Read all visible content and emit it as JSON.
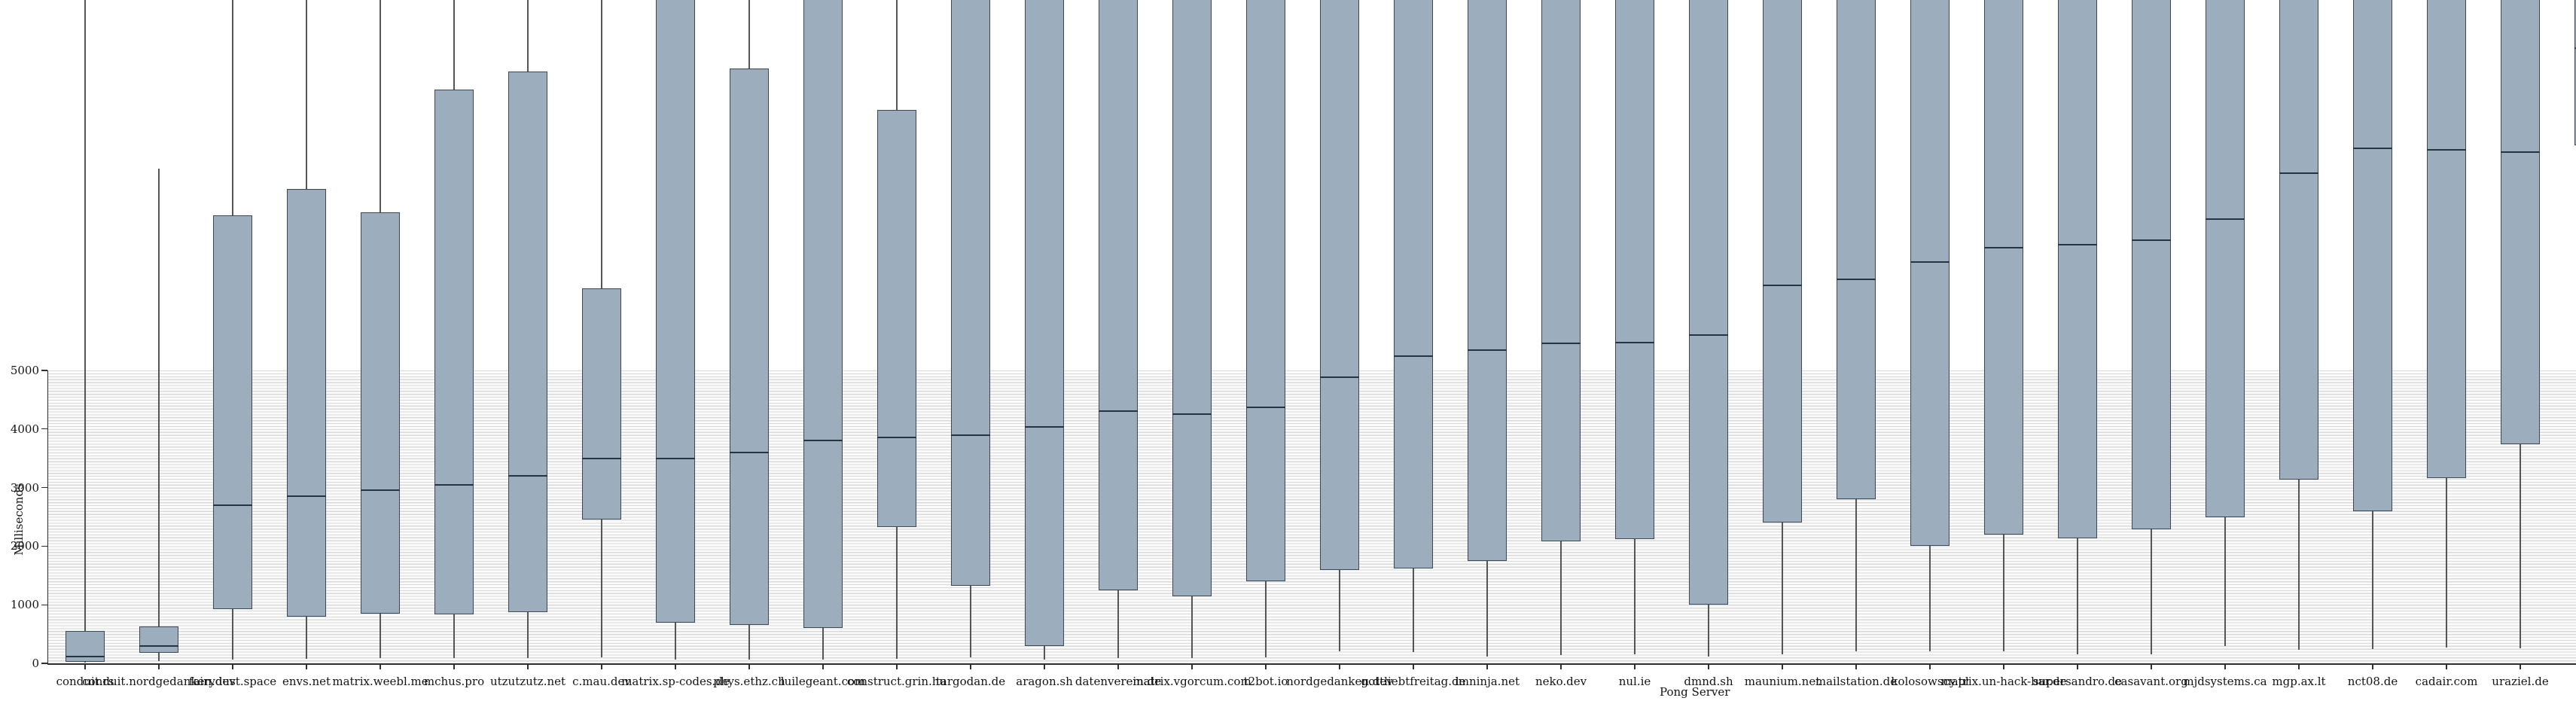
{
  "chart": {
    "background_color": "#ffffff",
    "y_axis_title": "Milliseconds",
    "x_axis_title": "Pong Server",
    "y_tick_labels": [
      "0",
      "1000",
      "2000",
      "3000",
      "4000",
      "5000"
    ]
  },
  "colors": {
    "box_fill": "#9cadbe",
    "box_border": "#3d4854",
    "median_line": "#253442",
    "whisker": "#555555",
    "axis": "#2e2e2e",
    "stripe_line": "#d9d9d9",
    "stripe_background": "#fbfbfb",
    "text": "#141414"
  },
  "chart_data": {
    "type": "boxplot",
    "title": "",
    "xlabel": "Pong Server",
    "ylabel": "Milliseconds",
    "ylim": [
      0,
      11320
    ],
    "y_tick_values": [
      0,
      1000,
      2000,
      3000,
      4000,
      5000
    ],
    "grid": "horizontal stripe lines every ~50 ms filling the band from 0 to 5000; white above 5000",
    "legend_position": "none",
    "clip_value": 11600,
    "clip_meaning": "11600 = feature extends past the top edge of the image (clipped); values are estimated ms",
    "series": [
      {
        "label": "conduit.rs",
        "min": 15,
        "q1": 30,
        "median": 120,
        "q3": 550,
        "max": 11600,
        "clipped_top": true
      },
      {
        "label": "conduit.nordgedanken.dev",
        "min": 40,
        "q1": 180,
        "median": 300,
        "q3": 630,
        "max": 8450,
        "clipped_top": false
      },
      {
        "label": "fairydust.space",
        "min": 70,
        "q1": 920,
        "median": 2700,
        "q3": 7650,
        "max": 11600,
        "clipped_top": true
      },
      {
        "label": "envs.net",
        "min": 80,
        "q1": 800,
        "median": 2850,
        "q3": 8100,
        "max": 11600,
        "clipped_top": true
      },
      {
        "label": "matrix.weebl.me",
        "min": 90,
        "q1": 850,
        "median": 2950,
        "q3": 7700,
        "max": 11600,
        "clipped_top": true
      },
      {
        "label": "mchus.pro",
        "min": 90,
        "q1": 830,
        "median": 3050,
        "q3": 9800,
        "max": 11600,
        "clipped_top": true
      },
      {
        "label": "utzutzutz.net",
        "min": 90,
        "q1": 870,
        "median": 3200,
        "q3": 10100,
        "max": 11600,
        "clipped_top": true
      },
      {
        "label": "c.mau.dev",
        "min": 100,
        "q1": 2450,
        "median": 3500,
        "q3": 6400,
        "max": 11600,
        "clipped_top": true
      },
      {
        "label": "matrix.sp-codes.de",
        "min": 60,
        "q1": 700,
        "median": 3500,
        "q3": 11600,
        "max": 11600,
        "clipped_top": true
      },
      {
        "label": "phys.ethz.ch",
        "min": 70,
        "q1": 650,
        "median": 3600,
        "q3": 10150,
        "max": 11600,
        "clipped_top": true
      },
      {
        "label": "luilegeant.com",
        "min": 60,
        "q1": 600,
        "median": 3800,
        "q3": 11600,
        "max": 11600,
        "clipped_top": true
      },
      {
        "label": "construct.grin.hu",
        "min": 80,
        "q1": 2330,
        "median": 3850,
        "q3": 9450,
        "max": 11600,
        "clipped_top": true
      },
      {
        "label": "targodan.de",
        "min": 100,
        "q1": 1330,
        "median": 3900,
        "q3": 11600,
        "max": 11600,
        "clipped_top": true
      },
      {
        "label": "aragon.sh",
        "min": 60,
        "q1": 300,
        "median": 4040,
        "q3": 11600,
        "max": 11600,
        "clipped_top": true
      },
      {
        "label": "datenverein.de",
        "min": 90,
        "q1": 1250,
        "median": 4300,
        "q3": 11600,
        "max": 11600,
        "clipped_top": true
      },
      {
        "label": "matrix.vgorcum.com",
        "min": 90,
        "q1": 1150,
        "median": 4260,
        "q3": 11600,
        "max": 11600,
        "clipped_top": true
      },
      {
        "label": "t2bot.io",
        "min": 100,
        "q1": 1400,
        "median": 4370,
        "q3": 11600,
        "max": 11600,
        "clipped_top": true
      },
      {
        "label": "nordgedanken.dev",
        "min": 200,
        "q1": 1600,
        "median": 4880,
        "q3": 11600,
        "max": 11600,
        "clipped_top": true
      },
      {
        "label": "gottliebtfreitag.de",
        "min": 190,
        "q1": 1620,
        "median": 5240,
        "q3": 11600,
        "max": 11600,
        "clipped_top": true
      },
      {
        "label": "imninja.net",
        "min": 120,
        "q1": 1750,
        "median": 5350,
        "q3": 11600,
        "max": 11600,
        "clipped_top": true
      },
      {
        "label": "neko.dev",
        "min": 140,
        "q1": 2080,
        "median": 5460,
        "q3": 11600,
        "max": 11600,
        "clipped_top": true
      },
      {
        "label": "nul.ie",
        "min": 150,
        "q1": 2120,
        "median": 5480,
        "q3": 11600,
        "max": 11600,
        "clipped_top": true
      },
      {
        "label": "dmnd.sh",
        "min": 110,
        "q1": 1000,
        "median": 5600,
        "q3": 11600,
        "max": 11600,
        "clipped_top": true
      },
      {
        "label": "maunium.net",
        "min": 150,
        "q1": 2400,
        "median": 6450,
        "q3": 11600,
        "max": 11600,
        "clipped_top": true
      },
      {
        "label": "mailstation.de",
        "min": 200,
        "q1": 2800,
        "median": 6550,
        "q3": 11600,
        "max": 11600,
        "clipped_top": true
      },
      {
        "label": "kolosowscy.pl",
        "min": 200,
        "q1": 2000,
        "median": 6850,
        "q3": 11600,
        "max": 11600,
        "clipped_top": true
      },
      {
        "label": "matrix.un-hack-bar.de",
        "min": 200,
        "q1": 2200,
        "median": 7100,
        "q3": 11600,
        "max": 11600,
        "clipped_top": true
      },
      {
        "label": "supersandro.de",
        "min": 150,
        "q1": 2140,
        "median": 7150,
        "q3": 11600,
        "max": 11600,
        "clipped_top": true
      },
      {
        "label": "casavant.org",
        "min": 150,
        "q1": 2290,
        "median": 7230,
        "q3": 11600,
        "max": 11600,
        "clipped_top": true
      },
      {
        "label": "mjdsystems.ca",
        "min": 300,
        "q1": 2490,
        "median": 7580,
        "q3": 11600,
        "max": 11600,
        "clipped_top": true
      },
      {
        "label": "mgp.ax.lt",
        "min": 230,
        "q1": 3130,
        "median": 8370,
        "q3": 11600,
        "max": 11600,
        "clipped_top": true
      },
      {
        "label": "nct08.de",
        "min": 250,
        "q1": 2600,
        "median": 8790,
        "q3": 11600,
        "max": 11600,
        "clipped_top": true
      },
      {
        "label": "cadair.com",
        "min": 270,
        "q1": 3160,
        "median": 8760,
        "q3": 11600,
        "max": 11600,
        "clipped_top": true
      },
      {
        "label": "uraziel.de",
        "min": 260,
        "q1": 3740,
        "median": 8730,
        "q3": 11600,
        "max": 11600,
        "clipped_top": true
      },
      {
        "label": "",
        "min": 8845,
        "q1": 8845,
        "median": 10500,
        "q3": 11600,
        "max": 11600,
        "clipped_top": true
      }
    ]
  }
}
